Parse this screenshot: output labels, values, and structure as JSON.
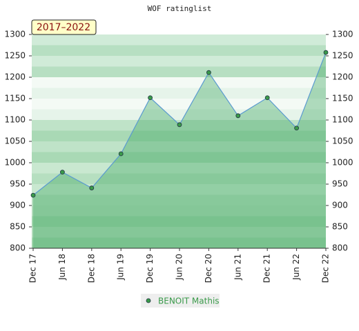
{
  "chart_data": {
    "type": "line",
    "title": "WOF ratinglist",
    "annotation": "2017–2022",
    "categories": [
      "Dec 17",
      "Jun 18",
      "Dec 18",
      "Jun 19",
      "Dec 19",
      "Jun 20",
      "Dec 20",
      "Jun 21",
      "Dec 21",
      "Jun 22",
      "Dec 22"
    ],
    "series": [
      {
        "name": "BENOIT Mathis",
        "color": "#3a9a4a",
        "values": [
          924,
          978,
          941,
          1021,
          1152,
          1089,
          1211,
          1110,
          1152,
          1081,
          1258
        ]
      }
    ],
    "ylim": [
      800,
      1300
    ],
    "yticks": [
      800,
      850,
      900,
      950,
      1000,
      1050,
      1100,
      1150,
      1200,
      1250,
      1300
    ],
    "grid": false
  }
}
